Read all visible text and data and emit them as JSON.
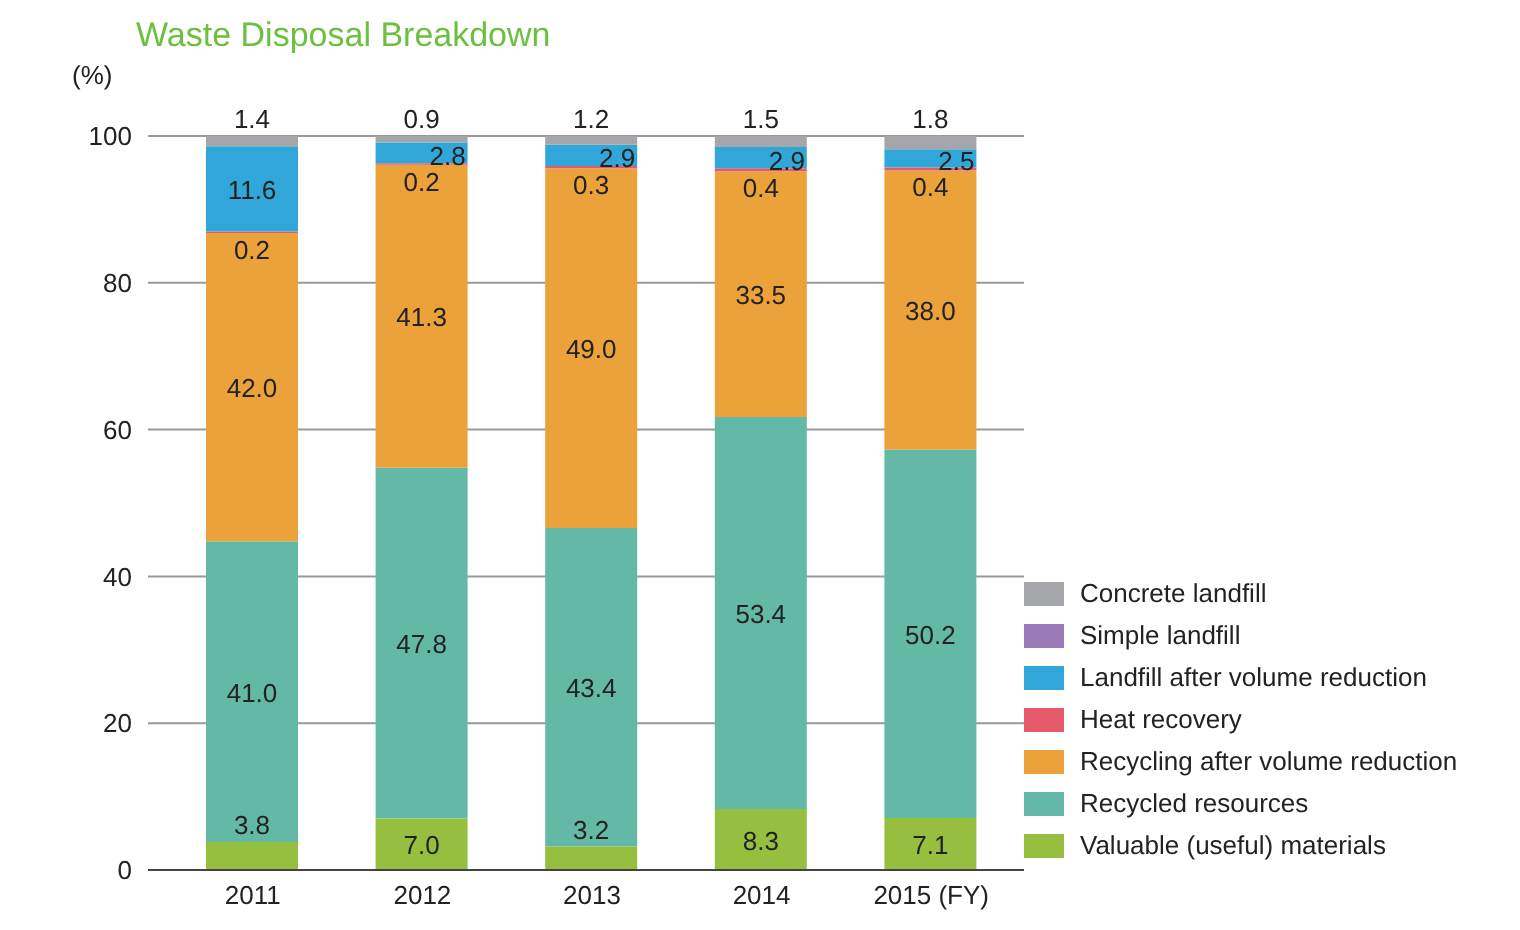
{
  "chart_data": {
    "type": "bar",
    "title": "Waste Disposal Breakdown",
    "ylabel": "(%)",
    "stacked": true,
    "categories": [
      "2011",
      "2012",
      "2013",
      "2014",
      "2015 (FY)"
    ],
    "ylim": [
      0,
      100
    ],
    "yticks": [
      0,
      20,
      40,
      60,
      80,
      100
    ],
    "grid": "y",
    "legend": "bottom right",
    "series": [
      {
        "name": "Valuable (useful) materials",
        "color": "#96bf3f",
        "values": [
          3.8,
          7.0,
          3.2,
          8.3,
          7.1
        ],
        "value_labels": [
          "3.8",
          "7.0",
          "3.2",
          "8.3",
          "7.1"
        ]
      },
      {
        "name": "Recycled resources",
        "color": "#63b9a5",
        "values": [
          41.0,
          47.8,
          43.4,
          53.4,
          50.2
        ],
        "value_labels": [
          "41.0",
          "47.8",
          "43.4",
          "53.4",
          "50.2"
        ]
      },
      {
        "name": "Recycling after volume reduction",
        "color": "#eca23a",
        "values": [
          42.0,
          41.3,
          49.0,
          33.5,
          38.0
        ],
        "value_labels": [
          "42.0",
          "41.3",
          "49.0",
          "33.5",
          "38.0"
        ]
      },
      {
        "name": "Heat recovery",
        "color": "#e55a6a",
        "values": [
          0.2,
          0.2,
          0.3,
          0.4,
          0.4
        ],
        "value_labels": [
          "0.2",
          "0.2",
          "0.3",
          "0.4",
          "0.4"
        ]
      },
      {
        "name": "Landfill after volume reduction",
        "color": "#31a7d9",
        "values": [
          11.6,
          2.8,
          2.9,
          2.9,
          2.5
        ],
        "value_labels": [
          "11.6",
          "2.8",
          "2.9",
          "2.9",
          "2.5"
        ]
      },
      {
        "name": "Simple landfill",
        "color": "#9a78b8",
        "values": [
          null,
          null,
          null,
          null,
          null
        ]
      },
      {
        "name": "Concrete landfill",
        "color": "#a5a6a9",
        "values": [
          1.4,
          0.9,
          1.2,
          1.5,
          1.8
        ],
        "value_labels": [
          "1.4",
          "0.9",
          "1.2",
          "1.5",
          "1.8"
        ]
      }
    ]
  }
}
